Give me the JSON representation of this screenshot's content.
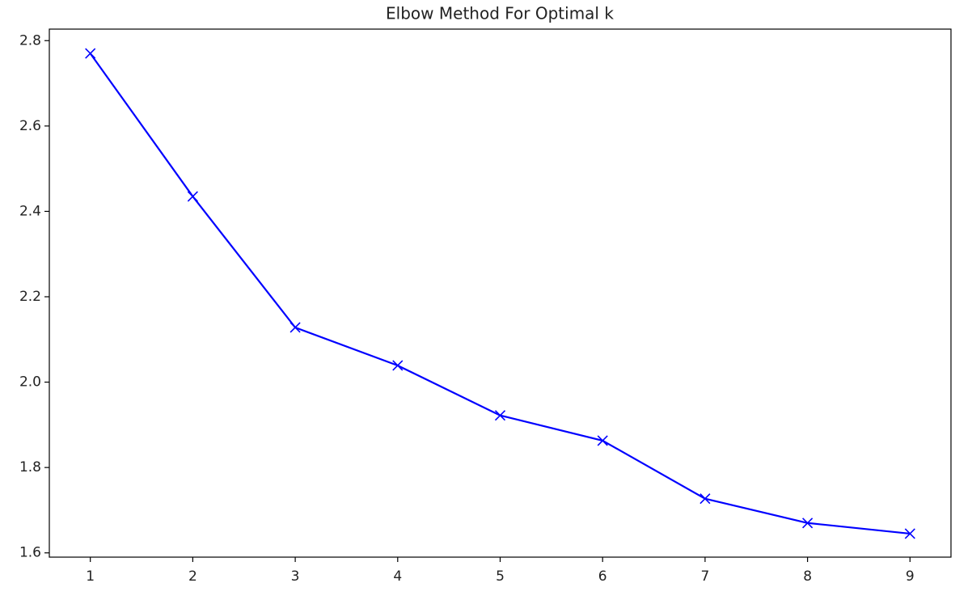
{
  "chart_data": {
    "type": "line",
    "title": "Elbow Method For Optimal k",
    "x": [
      1,
      2,
      3,
      4,
      5,
      6,
      7,
      8,
      9
    ],
    "series": [
      {
        "color": "#0000ff",
        "marker": "x",
        "values": [
          2.77,
          2.435,
          2.128,
          2.039,
          1.922,
          1.863,
          1.727,
          1.67,
          1.645
        ]
      }
    ],
    "xlim": [
      0.6,
      9.4
    ],
    "xticks": [
      1,
      2,
      3,
      4,
      5,
      6,
      7,
      8,
      9
    ],
    "ylim": [
      1.59,
      2.827
    ],
    "yticks": [
      1.6,
      1.8,
      {
        "value": 2.0,
        "label": "2.0"
      },
      2.2,
      2.4,
      2.6,
      2.8
    ],
    "grid": false
  }
}
